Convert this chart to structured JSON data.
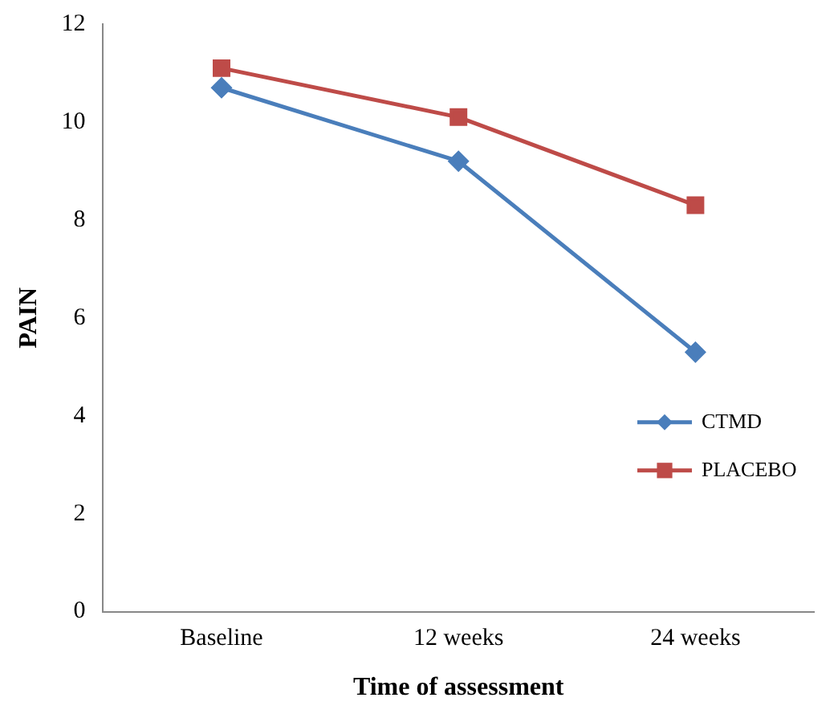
{
  "chart_data": {
    "type": "line",
    "xlabel": "Time of assessment",
    "ylabel": "PAIN",
    "categories": [
      "Baseline",
      "12 weeks",
      "24 weeks"
    ],
    "series": [
      {
        "name": "CTMD",
        "color": "#4a7ebb",
        "values": [
          10.7,
          9.2,
          5.3
        ],
        "marker": "diamond"
      },
      {
        "name": "PLACEBO",
        "color": "#be4b48",
        "values": [
          11.1,
          10.1,
          8.3
        ],
        "marker": "square"
      }
    ],
    "ylim": [
      0,
      12
    ],
    "yticks": [
      0,
      2,
      4,
      6,
      8,
      10,
      12
    ],
    "grid": false,
    "legend": "right",
    "line_style": "solid"
  }
}
